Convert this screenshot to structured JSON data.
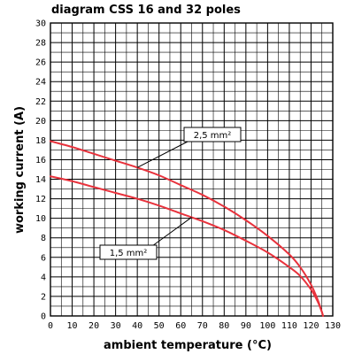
{
  "chart_data": {
    "type": "line",
    "title": "diagram CSS 16 and 32 poles",
    "xlabel": "ambient temperature (°C)",
    "ylabel": "working current (A)",
    "xlim": [
      0,
      130
    ],
    "ylim": [
      0,
      30
    ],
    "x_ticks": [
      0,
      10,
      20,
      30,
      40,
      50,
      60,
      70,
      80,
      90,
      100,
      110,
      120,
      130
    ],
    "y_ticks": [
      0,
      2,
      4,
      6,
      8,
      10,
      12,
      14,
      16,
      18,
      20,
      22,
      24,
      26,
      28,
      30
    ],
    "grid": true,
    "line_color": "#e8323c",
    "series": [
      {
        "name": "2,5 mm²",
        "x": [
          0,
          10,
          20,
          30,
          40,
          50,
          60,
          70,
          80,
          90,
          100,
          110,
          115,
          120,
          123,
          125,
          125.5
        ],
        "y": [
          17.9,
          17.3,
          16.6,
          15.9,
          15.2,
          14.4,
          13.4,
          12.4,
          11.2,
          9.8,
          8.2,
          6.3,
          5.0,
          3.2,
          1.7,
          0.4,
          0
        ]
      },
      {
        "name": "1,5 mm²",
        "x": [
          0,
          10,
          20,
          30,
          40,
          50,
          60,
          70,
          80,
          90,
          100,
          110,
          115,
          120,
          123,
          125,
          125.5
        ],
        "y": [
          14.3,
          13.8,
          13.2,
          12.6,
          12.0,
          11.3,
          10.5,
          9.7,
          8.8,
          7.7,
          6.5,
          5.0,
          4.1,
          2.7,
          1.5,
          0.4,
          0
        ]
      }
    ],
    "annotations": [
      {
        "text": "2,5 mm²",
        "series": 0,
        "target_x": 40
      },
      {
        "text": "1,5 mm²",
        "series": 1,
        "target_x": 65
      }
    ]
  }
}
